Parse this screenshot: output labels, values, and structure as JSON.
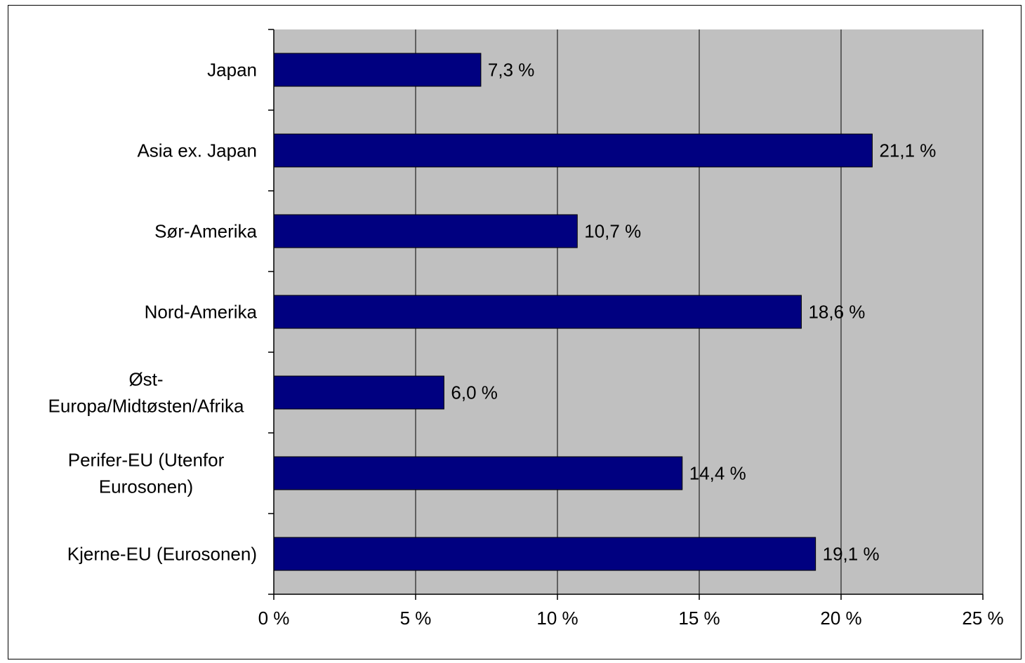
{
  "chart_data": {
    "type": "bar",
    "orientation": "horizontal",
    "title": "",
    "xlabel": "",
    "ylabel": "",
    "categories": [
      [
        "Japan"
      ],
      [
        "Asia ex. Japan"
      ],
      [
        "Sør-Amerika"
      ],
      [
        "Nord-Amerika"
      ],
      [
        "Øst-",
        "Europa/Midtøsten/Afrika"
      ],
      [
        "Perifer-EU (Utenfor",
        "Eurosonen)"
      ],
      [
        "Kjerne-EU (Eurosonen)"
      ]
    ],
    "values": [
      7.3,
      21.1,
      10.7,
      18.6,
      6.0,
      14.4,
      19.1
    ],
    "data_labels": [
      "7,3 %",
      "21,1 %",
      "10,7 %",
      "18,6 %",
      "6,0 %",
      "14,4 %",
      "19,1 %"
    ],
    "xlim": [
      0,
      25
    ],
    "x_ticks": [
      0,
      5,
      10,
      15,
      20,
      25
    ],
    "x_tick_labels": [
      "0 %",
      "5 %",
      "10 %",
      "15 %",
      "20 %",
      "25 %"
    ],
    "grid": "vertical",
    "legend": "none",
    "colors": {
      "bar": "#000080",
      "plot_background": "#c0c0c0",
      "gridline": "#000000"
    }
  }
}
